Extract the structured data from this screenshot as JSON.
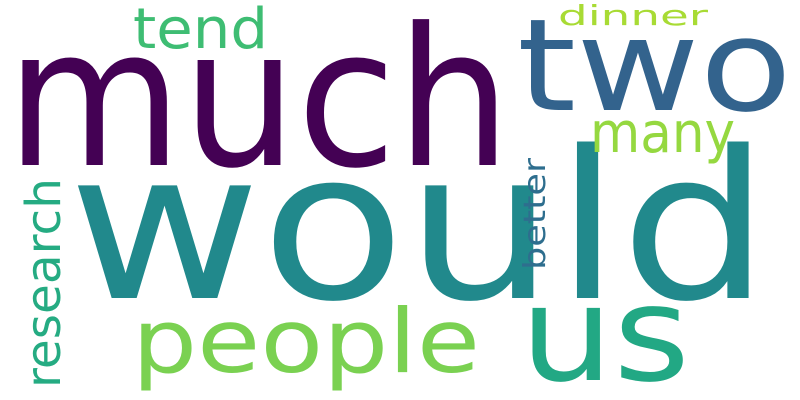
{
  "words": [
    {
      "text": "much",
      "color": "#440154"
    },
    {
      "text": "would",
      "color": "#21898c"
    },
    {
      "text": "two",
      "color": "#33638d"
    },
    {
      "text": "people",
      "color": "#7ad151"
    },
    {
      "text": "us",
      "color": "#22a884"
    },
    {
      "text": "many",
      "color": "#95d840"
    },
    {
      "text": "tend",
      "color": "#3ebd73"
    },
    {
      "text": "dinner",
      "color": "#a8db34"
    },
    {
      "text": "research",
      "color": "#25ab82"
    },
    {
      "text": "better",
      "color": "#2e6e8e"
    }
  ]
}
